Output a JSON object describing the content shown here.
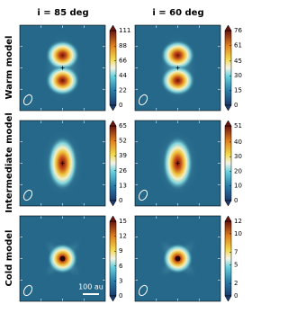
{
  "column_titles": [
    "i = 85 deg",
    "i = 60 deg"
  ],
  "row_labels": [
    "Warm model",
    "Intermediate model",
    "Cold model"
  ],
  "scale_bar": "100 au",
  "chart_data": [
    {
      "type": "image",
      "shape": "double",
      "clim": [
        0,
        111
      ],
      "cticks": [
        0,
        22,
        44,
        66,
        88,
        111
      ]
    },
    {
      "type": "image",
      "shape": "double",
      "clim": [
        0,
        76
      ],
      "cticks": [
        0,
        15,
        30,
        45,
        61,
        76
      ]
    },
    {
      "type": "image",
      "shape": "elongated",
      "clim": [
        0,
        65
      ],
      "cticks": [
        0,
        13,
        26,
        39,
        52,
        65
      ]
    },
    {
      "type": "image",
      "shape": "elongated",
      "clim": [
        0,
        51
      ],
      "cticks": [
        0,
        10,
        20,
        30,
        40,
        51
      ]
    },
    {
      "type": "image",
      "shape": "compact",
      "clim": [
        0,
        15
      ],
      "cticks": [
        0,
        3,
        6,
        9,
        12,
        15
      ]
    },
    {
      "type": "image",
      "shape": "compact",
      "clim": [
        0,
        12
      ],
      "cticks": [
        0,
        2,
        5,
        7,
        10,
        12
      ]
    }
  ]
}
